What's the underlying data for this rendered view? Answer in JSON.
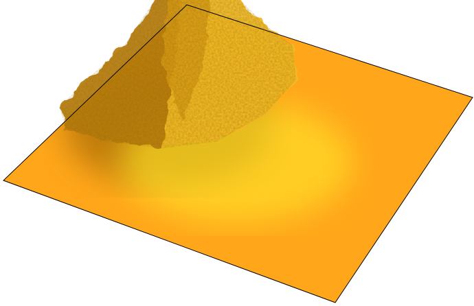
{
  "chart_data": {
    "type": "surface3d",
    "title": "",
    "xlabel": "",
    "ylabel": "",
    "zlabel": "",
    "axes_visible": false,
    "grid": false,
    "legend": "none",
    "base_color": "#FFA61A",
    "highlight_color": "#FFE82A",
    "shadow_color": "#8A5A00",
    "edge_color": "#000000",
    "surface": {
      "x_range": [
        0,
        1
      ],
      "y_range": [
        0,
        1
      ],
      "z_range": [
        0,
        1
      ],
      "peak": {
        "x": 0.22,
        "y": 0.55,
        "z": 1.0
      }
    }
  }
}
